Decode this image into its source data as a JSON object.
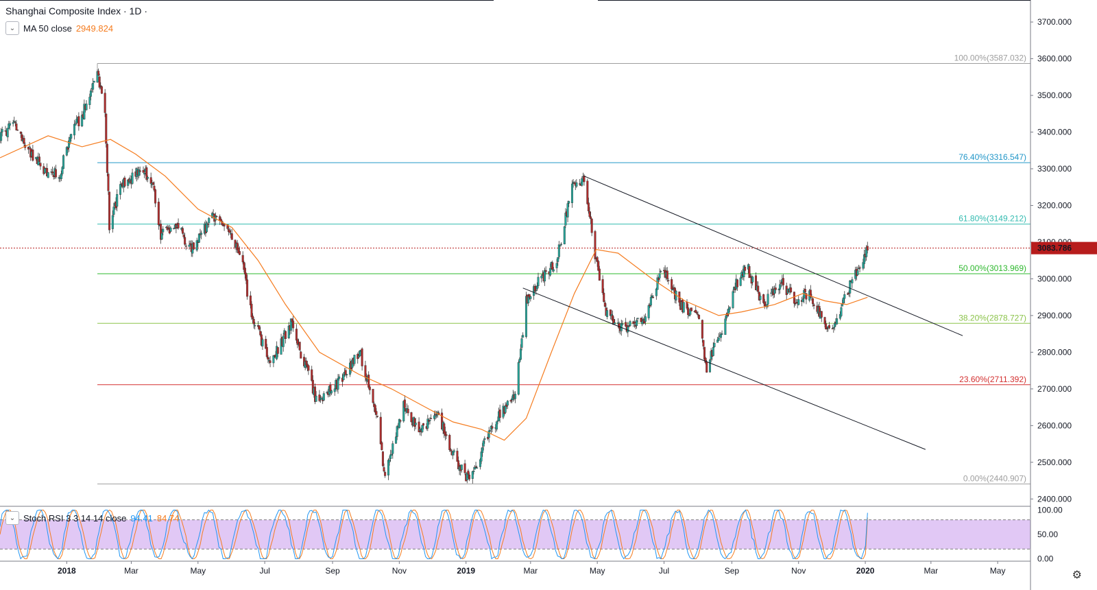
{
  "header": {
    "symbol": "Shanghai Composite Index · 1D ·",
    "ma_label": "MA 50 close",
    "ma_value": "2949.824",
    "stoch_label": "Stoch RSI 3 3 14 14 close",
    "stoch_k": "94.41",
    "stoch_d": "84.74"
  },
  "colors": {
    "up": "#26a69a",
    "down": "#b02d2d",
    "ma": "#f57c1f",
    "stoch_k": "#2196f3",
    "stoch_d": "#f57c1f",
    "stoch_band": "#e1c8f5",
    "last_price_badge": "#b71c1c"
  },
  "icons": {
    "collapse": "chevron-down-icon",
    "settings": "gear-icon"
  },
  "last_price": {
    "value": 3083.786,
    "label": "3083.786"
  },
  "chart_data": {
    "type": "candlestick",
    "title": "Shanghai Composite Index · 1D ·",
    "price_axis": {
      "range": [
        2380,
        3760
      ],
      "ticks": [
        2400,
        2500,
        2600,
        2700,
        2800,
        2900,
        3000,
        3100,
        3200,
        3300,
        3400,
        3500,
        3600,
        3700
      ],
      "tick_labels": [
        "2400.000",
        "2500.000",
        "2600.000",
        "2700.000",
        "2800.000",
        "2900.000",
        "3000.000",
        "3100.000",
        "3200.000",
        "3300.000",
        "3400.000",
        "3500.000",
        "3600.000",
        "3700.000"
      ]
    },
    "time_axis": {
      "range": [
        "2017-11-01",
        "2020-05-31"
      ],
      "ticks": [
        {
          "date": "2018-01-01",
          "label": "2018",
          "bold": true
        },
        {
          "date": "2018-03-01",
          "label": "Mar"
        },
        {
          "date": "2018-05-01",
          "label": "May"
        },
        {
          "date": "2018-07-01",
          "label": "Jul"
        },
        {
          "date": "2018-09-01",
          "label": "Sep"
        },
        {
          "date": "2018-11-01",
          "label": "Nov"
        },
        {
          "date": "2019-01-01",
          "label": "2019",
          "bold": true
        },
        {
          "date": "2019-03-01",
          "label": "Mar"
        },
        {
          "date": "2019-05-01",
          "label": "May"
        },
        {
          "date": "2019-07-01",
          "label": "Jul"
        },
        {
          "date": "2019-09-01",
          "label": "Sep"
        },
        {
          "date": "2019-11-01",
          "label": "Nov"
        },
        {
          "date": "2020-01-01",
          "label": "2020",
          "bold": true
        },
        {
          "date": "2020-03-01",
          "label": "Mar"
        },
        {
          "date": "2020-05-01",
          "label": "May"
        }
      ]
    },
    "price_path": [
      [
        "2017-11-01",
        3390
      ],
      [
        "2017-11-15",
        3420
      ],
      [
        "2017-11-25",
        3360
      ],
      [
        "2017-12-10",
        3300
      ],
      [
        "2017-12-25",
        3280
      ],
      [
        "2018-01-05",
        3390
      ],
      [
        "2018-01-20",
        3480
      ],
      [
        "2018-01-29",
        3570
      ],
      [
        "2018-02-05",
        3450
      ],
      [
        "2018-02-09",
        3150
      ],
      [
        "2018-02-20",
        3250
      ],
      [
        "2018-03-10",
        3300
      ],
      [
        "2018-03-20",
        3270
      ],
      [
        "2018-03-28",
        3120
      ],
      [
        "2018-04-10",
        3150
      ],
      [
        "2018-04-25",
        3080
      ],
      [
        "2018-05-15",
        3170
      ],
      [
        "2018-05-25",
        3150
      ],
      [
        "2018-06-10",
        3050
      ],
      [
        "2018-06-19",
        2900
      ],
      [
        "2018-07-06",
        2770
      ],
      [
        "2018-07-25",
        2880
      ],
      [
        "2018-08-17",
        2670
      ],
      [
        "2018-09-05",
        2710
      ],
      [
        "2018-09-26",
        2800
      ],
      [
        "2018-10-10",
        2650
      ],
      [
        "2018-10-19",
        2460
      ],
      [
        "2018-11-05",
        2660
      ],
      [
        "2018-11-20",
        2580
      ],
      [
        "2018-12-05",
        2640
      ],
      [
        "2018-12-20",
        2520
      ],
      [
        "2019-01-04",
        2450
      ],
      [
        "2019-01-25",
        2600
      ],
      [
        "2019-02-15",
        2680
      ],
      [
        "2019-02-25",
        2940
      ],
      [
        "2019-03-10",
        3000
      ],
      [
        "2019-03-25",
        3050
      ],
      [
        "2019-04-08",
        3250
      ],
      [
        "2019-04-19",
        3270
      ],
      [
        "2019-04-30",
        3050
      ],
      [
        "2019-05-10",
        2900
      ],
      [
        "2019-05-25",
        2860
      ],
      [
        "2019-06-15",
        2900
      ],
      [
        "2019-06-30",
        3030
      ],
      [
        "2019-07-15",
        2930
      ],
      [
        "2019-08-01",
        2900
      ],
      [
        "2019-08-09",
        2760
      ],
      [
        "2019-08-25",
        2880
      ],
      [
        "2019-09-05",
        2990
      ],
      [
        "2019-09-15",
        3030
      ],
      [
        "2019-09-30",
        2930
      ],
      [
        "2019-10-15",
        2990
      ],
      [
        "2019-10-30",
        2940
      ],
      [
        "2019-11-10",
        2960
      ],
      [
        "2019-11-25",
        2880
      ],
      [
        "2019-12-03",
        2875
      ],
      [
        "2019-12-15",
        2960
      ],
      [
        "2019-12-23",
        3010
      ],
      [
        "2019-12-31",
        3060
      ],
      [
        "2020-01-03",
        3083.786
      ]
    ],
    "ma50": {
      "name": "MA 50 close",
      "value": 2949.824,
      "path": [
        [
          "2017-11-01",
          3330
        ],
        [
          "2017-12-15",
          3390
        ],
        [
          "2018-01-15",
          3360
        ],
        [
          "2018-02-10",
          3380
        ],
        [
          "2018-03-05",
          3340
        ],
        [
          "2018-04-01",
          3280
        ],
        [
          "2018-05-01",
          3190
        ],
        [
          "2018-06-01",
          3140
        ],
        [
          "2018-06-25",
          3050
        ],
        [
          "2018-07-20",
          2930
        ],
        [
          "2018-08-20",
          2800
        ],
        [
          "2018-09-25",
          2740
        ],
        [
          "2018-10-25",
          2700
        ],
        [
          "2018-11-25",
          2650
        ],
        [
          "2018-12-20",
          2610
        ],
        [
          "2019-01-15",
          2590
        ],
        [
          "2019-02-05",
          2560
        ],
        [
          "2019-02-25",
          2620
        ],
        [
          "2019-03-20",
          2800
        ],
        [
          "2019-04-10",
          2960
        ],
        [
          "2019-04-30",
          3080
        ],
        [
          "2019-05-20",
          3070
        ],
        [
          "2019-06-20",
          3000
        ],
        [
          "2019-07-20",
          2940
        ],
        [
          "2019-08-20",
          2900
        ],
        [
          "2019-09-10",
          2910
        ],
        [
          "2019-10-10",
          2930
        ],
        [
          "2019-11-05",
          2960
        ],
        [
          "2019-11-25",
          2940
        ],
        [
          "2019-12-15",
          2930
        ],
        [
          "2020-01-03",
          2949.824
        ]
      ]
    },
    "fibonacci": {
      "start_date": "2018-01-29",
      "levels": [
        {
          "ratio": 1.0,
          "label": "100.00%(3587.032)",
          "price": 3587.032,
          "color": "#9e9e9e"
        },
        {
          "ratio": 0.764,
          "label": "76.40%(3316.547)",
          "price": 3316.547,
          "color": "#2196c8"
        },
        {
          "ratio": 0.618,
          "label": "61.80%(3149.212)",
          "price": 3149.212,
          "color": "#33bbb0"
        },
        {
          "ratio": 0.5,
          "label": "50.00%(3013.969)",
          "price": 3013.969,
          "color": "#2eb82e"
        },
        {
          "ratio": 0.382,
          "label": "38.20%(2878.727)",
          "price": 2878.727,
          "color": "#8bc34a"
        },
        {
          "ratio": 0.236,
          "label": "23.60%(2711.392)",
          "price": 2711.392,
          "color": "#d32f2f"
        },
        {
          "ratio": 0.0,
          "label": "0.00%(2440.907)",
          "price": 2440.907,
          "color": "#9e9e9e"
        }
      ]
    },
    "trendlines": [
      {
        "from": [
          "2019-04-19",
          3280
        ],
        "to": [
          "2020-03-30",
          2845
        ]
      },
      {
        "from": [
          "2019-02-22",
          2975
        ],
        "to": [
          "2020-02-25",
          2535
        ]
      }
    ],
    "stoch_rsi": {
      "name": "Stoch RSI 3 3 14 14 close",
      "k": 94.41,
      "d": 84.74,
      "upper_band": 80,
      "lower_band": 20,
      "range": [
        -5,
        105
      ],
      "ticks": [
        0,
        50,
        100
      ],
      "tick_labels": [
        "0.00",
        "50.00",
        "100.00"
      ]
    }
  }
}
